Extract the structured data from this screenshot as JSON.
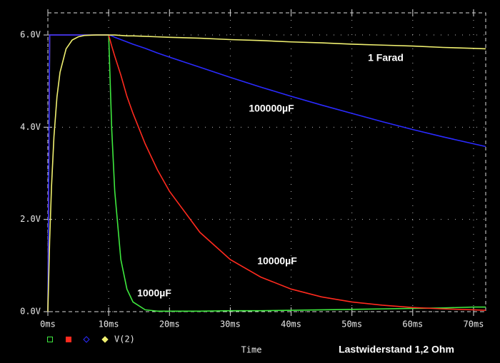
{
  "chart_data": {
    "type": "line",
    "x_label": "Time",
    "annotation": "Lastwiderstand 1,2 Ohm",
    "legend_text": "V(2)",
    "x": [
      0,
      0.3,
      0.6,
      1,
      1.5,
      2,
      3,
      4,
      5,
      6,
      8,
      10,
      10.5,
      11,
      12,
      13,
      14,
      16,
      18,
      20,
      25,
      30,
      35,
      40,
      45,
      50,
      55,
      60,
      65,
      70,
      72
    ],
    "series": [
      {
        "name": "1000µF",
        "color": "#3ee83e",
        "values": [
          0,
          6,
          6,
          6,
          6,
          6,
          6,
          6,
          6,
          6,
          6,
          6,
          3.96,
          2.61,
          1.13,
          0.49,
          0.21,
          0.04,
          0.01,
          0.01,
          0.01,
          0.02,
          0.02,
          0.03,
          0.04,
          0.05,
          0.06,
          0.07,
          0.08,
          0.1,
          0.1
        ]
      },
      {
        "name": "10000µF",
        "color": "#ff2a1e",
        "values": [
          0,
          6,
          6,
          6,
          6,
          6,
          6,
          6,
          6,
          6,
          6,
          6,
          5.76,
          5.54,
          5.13,
          4.67,
          4.3,
          3.64,
          3.08,
          2.61,
          1.72,
          1.13,
          0.75,
          0.49,
          0.32,
          0.21,
          0.14,
          0.09,
          0.06,
          0.04,
          0.03
        ]
      },
      {
        "name": "100000µF",
        "color": "#2a2aff",
        "values": [
          0,
          6,
          6,
          6,
          6,
          6,
          6,
          6,
          6,
          6,
          6,
          6,
          5.98,
          5.95,
          5.9,
          5.85,
          5.8,
          5.71,
          5.61,
          5.52,
          5.3,
          5.08,
          4.87,
          4.67,
          4.48,
          4.3,
          4.12,
          3.95,
          3.79,
          3.64,
          3.58
        ]
      },
      {
        "name": "1 Farad",
        "color": "#f0f070",
        "values": [
          0,
          1.56,
          2.71,
          3.79,
          4.66,
          5.19,
          5.7,
          5.89,
          5.96,
          5.99,
          6,
          6,
          6.0,
          6.0,
          5.99,
          5.98,
          5.98,
          5.97,
          5.96,
          5.95,
          5.93,
          5.9,
          5.88,
          5.85,
          5.83,
          5.8,
          5.78,
          5.76,
          5.73,
          5.71,
          5.7
        ]
      }
    ],
    "xlim": [
      0,
      72
    ],
    "ylim": [
      0,
      6.48
    ],
    "xticks": [
      {
        "value": 0,
        "label": "0ms"
      },
      {
        "value": 10,
        "label": "10ms"
      },
      {
        "value": 20,
        "label": "20ms"
      },
      {
        "value": 30,
        "label": "30ms"
      },
      {
        "value": 40,
        "label": "40ms"
      },
      {
        "value": 50,
        "label": "50ms"
      },
      {
        "value": 60,
        "label": "60ms"
      },
      {
        "value": 70,
        "label": "70ms"
      }
    ],
    "yticks": [
      {
        "value": 0,
        "label": "0.0V"
      },
      {
        "value": 2,
        "label": "2.0V"
      },
      {
        "value": 4,
        "label": "4.0V"
      },
      {
        "value": 6,
        "label": "6.0V"
      }
    ],
    "grid": true
  }
}
